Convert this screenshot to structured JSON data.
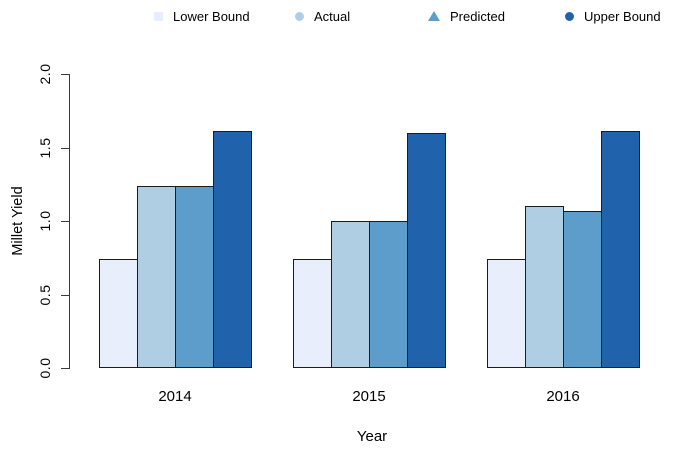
{
  "legend": {
    "items": [
      {
        "label": "Lower Bound",
        "marker": "square",
        "color": "#E8EEFB"
      },
      {
        "label": "Actual",
        "marker": "circle",
        "color": "#AFCEE3"
      },
      {
        "label": "Predicted",
        "marker": "triangle",
        "color": "#5C9DCB"
      },
      {
        "label": "Upper Bound",
        "marker": "circle",
        "color": "#2063AC"
      }
    ]
  },
  "chart_data": {
    "type": "bar",
    "title": "",
    "xlabel": "Year",
    "ylabel": "Millet Yield",
    "categories": [
      "2014",
      "2015",
      "2016"
    ],
    "series": [
      {
        "name": "Lower Bound",
        "color": "#E8EEFB",
        "values": [
          0.74,
          0.74,
          0.74
        ]
      },
      {
        "name": "Actual",
        "color": "#AFCEE3",
        "values": [
          1.24,
          1.0,
          1.1
        ]
      },
      {
        "name": "Predicted",
        "color": "#5C9DCB",
        "values": [
          1.24,
          1.0,
          1.07
        ]
      },
      {
        "name": "Upper Bound",
        "color": "#2063AC",
        "values": [
          1.61,
          1.6,
          1.61
        ]
      }
    ],
    "ylim": [
      0,
      2
    ],
    "yticks": [
      "0.0",
      "0.5",
      "1.0",
      "1.5",
      "2.0"
    ],
    "grid": false,
    "legend_position": "top",
    "bar_border_color": "#1c1c1c",
    "axis_color": "#3a3a3a"
  }
}
